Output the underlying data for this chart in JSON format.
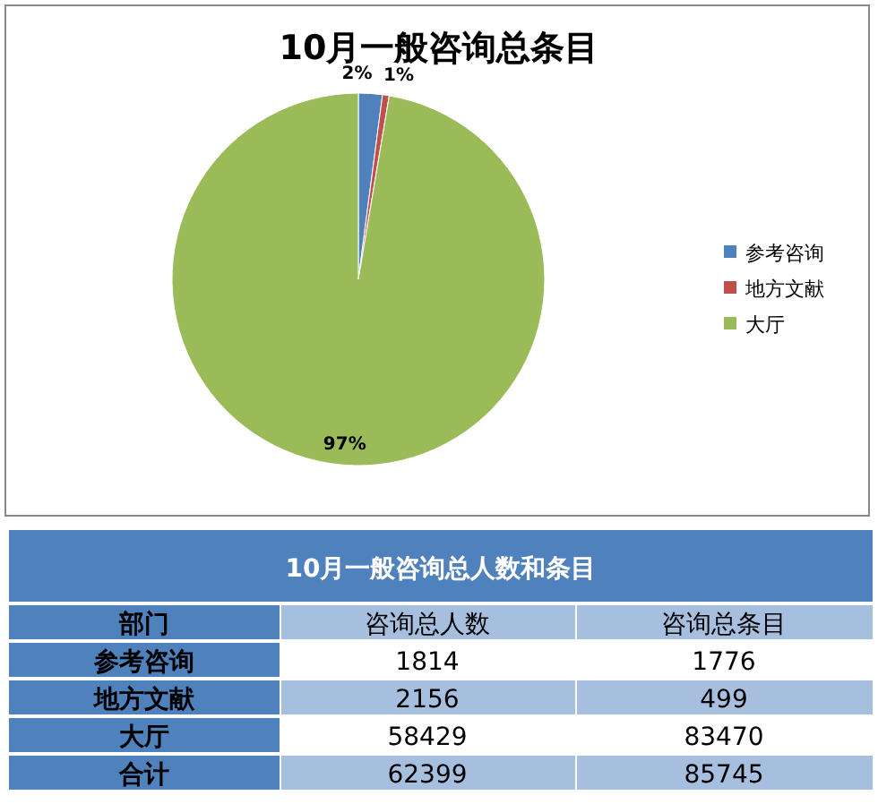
{
  "chart_data": [
    {
      "type": "pie",
      "title": "10月一般咨询总条目",
      "categories": [
        "参考咨询",
        "地方文献",
        "大厅"
      ],
      "values": [
        2.07,
        0.58,
        97.35
      ],
      "value_labels": [
        "2%",
        "1%",
        "97%"
      ],
      "colors": [
        "#4f81bd",
        "#c0504d",
        "#9bbb59"
      ],
      "legend": "right"
    },
    {
      "type": "other",
      "title": "10月一般咨询总人数和条目",
      "xlabel": "部门",
      "data_labels": true,
      "categories": [
        "参考咨询",
        "地方文献",
        "大厅",
        "合计"
      ],
      "series": [
        {
          "name": "咨询总人数",
          "values": [
            1814,
            2156,
            58429,
            62399
          ]
        },
        {
          "name": "咨询总条目",
          "values": [
            1776,
            499,
            83470,
            85745
          ]
        }
      ]
    }
  ]
}
